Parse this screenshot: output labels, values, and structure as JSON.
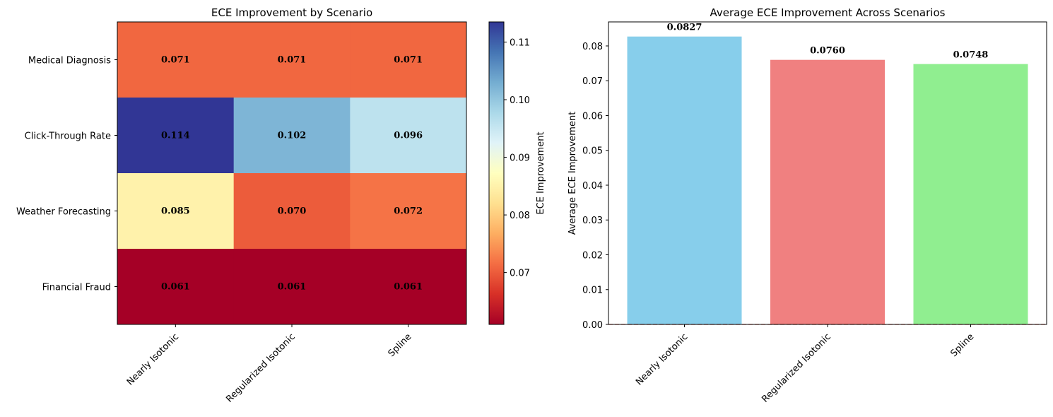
{
  "chart_data": [
    {
      "type": "heatmap",
      "title": "ECE Improvement by Scenario",
      "rows": [
        "Medical Diagnosis",
        "Click-Through Rate",
        "Weather Forecasting",
        "Financial Fraud"
      ],
      "columns": [
        "Nearly Isotonic",
        "Regularized Isotonic",
        "Spline"
      ],
      "values": [
        [
          0.071,
          0.071,
          0.071
        ],
        [
          0.114,
          0.102,
          0.096
        ],
        [
          0.085,
          0.07,
          0.072
        ],
        [
          0.061,
          0.061,
          0.061
        ]
      ],
      "value_labels": [
        [
          "0.071",
          "0.071",
          "0.071"
        ],
        [
          "0.114",
          "0.102",
          "0.096"
        ],
        [
          "0.085",
          "0.070",
          "0.072"
        ],
        [
          "0.061",
          "0.061",
          "0.061"
        ]
      ],
      "colormap": "RdYlBu",
      "colorbar": {
        "label": "ECE Improvement",
        "range": [
          0.061,
          0.1135
        ],
        "ticks": [
          0.07,
          0.08,
          0.09,
          0.1,
          0.11
        ],
        "tick_labels": [
          "0.07",
          "0.08",
          "0.09",
          "0.10",
          "0.11"
        ]
      }
    },
    {
      "type": "bar",
      "title": "Average ECE Improvement Across Scenarios",
      "categories": [
        "Nearly Isotonic",
        "Regularized Isotonic",
        "Spline"
      ],
      "values": [
        0.0827,
        0.076,
        0.0748
      ],
      "value_labels": [
        "0.0827",
        "0.0760",
        "0.0748"
      ],
      "colors": [
        "#87ceeb",
        "#f08080",
        "#90ee90"
      ],
      "xlabel": "",
      "ylabel": "Average ECE Improvement",
      "ylim": [
        0,
        0.0869
      ],
      "yticks": [
        0.0,
        0.01,
        0.02,
        0.03,
        0.04,
        0.05,
        0.06,
        0.07,
        0.08
      ],
      "ytick_labels": [
        "0.00",
        "0.01",
        "0.02",
        "0.03",
        "0.04",
        "0.05",
        "0.06",
        "0.07",
        "0.08"
      ],
      "reference_line": {
        "y": 0,
        "style": "dashed",
        "color": "#e0403a"
      }
    }
  ]
}
